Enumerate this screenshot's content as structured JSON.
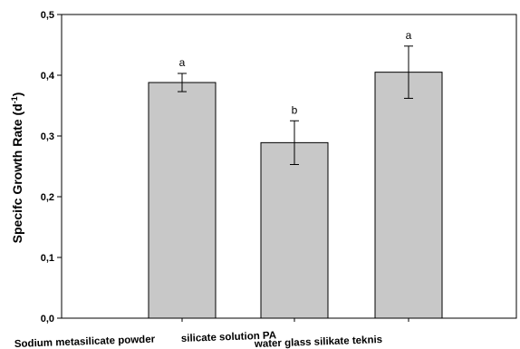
{
  "chart_data": {
    "type": "bar",
    "categories": [
      "Sodium metasilicate powder",
      "silicate solution PA",
      "water glass silikate teknis"
    ],
    "values": [
      0.388,
      0.289,
      0.405
    ],
    "error": [
      0.015,
      0.036,
      0.043
    ],
    "significance_labels": [
      "a",
      "b",
      "a"
    ],
    "ylabel": "Specifc Growth Rate (d⁻¹)",
    "ylabel_main": "Specifc Growth Rate (d",
    "ylabel_sup": "-1",
    "ylabel_close": ")",
    "ylim": [
      0,
      0.5
    ],
    "yticks": [
      "0,0",
      "0,1",
      "0,2",
      "0,3",
      "0,4",
      "0,5"
    ],
    "bar_color": "#c8c8c8",
    "grid": false,
    "legend": "none"
  }
}
